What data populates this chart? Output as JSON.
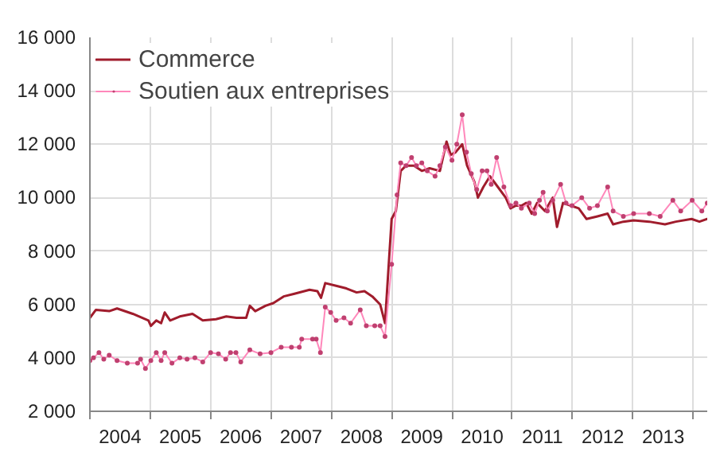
{
  "chart_data": {
    "type": "line",
    "xlim": [
      2004,
      2014.23
    ],
    "ylim": [
      2000,
      16000
    ],
    "xticks": [
      {
        "value": 2004,
        "label": null
      },
      {
        "value": 2005,
        "label": null
      },
      {
        "value": 2006,
        "label": null
      },
      {
        "value": 2007,
        "label": null
      },
      {
        "value": 2008,
        "label": null
      },
      {
        "value": 2009,
        "label": null
      },
      {
        "value": 2010,
        "label": null
      },
      {
        "value": 2011,
        "label": null
      },
      {
        "value": 2012,
        "label": null
      },
      {
        "value": 2013,
        "label": null
      },
      {
        "value": 2014,
        "label": null
      },
      {
        "value": 2004.5,
        "label": "2004"
      },
      {
        "value": 2005.5,
        "label": "2005"
      },
      {
        "value": 2006.5,
        "label": "2006"
      },
      {
        "value": 2007.5,
        "label": "2007"
      },
      {
        "value": 2008.5,
        "label": "2008"
      },
      {
        "value": 2009.5,
        "label": "2009"
      },
      {
        "value": 2010.5,
        "label": "2010"
      },
      {
        "value": 2011.5,
        "label": "2011"
      },
      {
        "value": 2012.5,
        "label": "2012"
      },
      {
        "value": 2013.5,
        "label": "2013"
      }
    ],
    "yticks": [
      {
        "value": 2000,
        "label": "2 000"
      },
      {
        "value": 4000,
        "label": "4 000"
      },
      {
        "value": 6000,
        "label": "6 000"
      },
      {
        "value": 8000,
        "label": "8 000"
      },
      {
        "value": 10000,
        "label": "10 000"
      },
      {
        "value": 12000,
        "label": "12 000"
      },
      {
        "value": 14000,
        "label": "14 000"
      },
      {
        "value": 16000,
        "label": "16 000"
      }
    ],
    "grid": true,
    "legend": "top left",
    "line_style": "solid",
    "series": [
      {
        "name": "Commerce",
        "color": "#a01c2c",
        "marker": "none",
        "x": [
          2004.0,
          2004.1,
          2004.32,
          2004.45,
          2004.71,
          2004.97,
          2005.01,
          2005.1,
          2005.18,
          2005.24,
          2005.33,
          2005.49,
          2005.7,
          2005.87,
          2006.09,
          2006.26,
          2006.43,
          2006.59,
          2006.65,
          2006.74,
          2006.91,
          2007.04,
          2007.21,
          2007.39,
          2007.64,
          2007.77,
          2007.83,
          2007.9,
          2008.08,
          2008.25,
          2008.42,
          2008.55,
          2008.68,
          2008.81,
          2008.89,
          2009.0,
          2009.07,
          2009.15,
          2009.24,
          2009.37,
          2009.5,
          2009.63,
          2009.8,
          2009.91,
          2009.98,
          2010.06,
          2010.17,
          2010.25,
          2010.37,
          2010.43,
          2010.52,
          2010.63,
          2010.76,
          2010.89,
          2010.97,
          2011.06,
          2011.15,
          2011.23,
          2011.32,
          2011.41,
          2011.54,
          2011.67,
          2011.74,
          2011.84,
          2011.97,
          2012.1,
          2012.23,
          2012.41,
          2012.58,
          2012.67,
          2012.84,
          2013.01,
          2013.27,
          2013.53,
          2013.71,
          2013.97,
          2014.1,
          2014.23
        ],
        "values": [
          5500,
          5800,
          5750,
          5850,
          5650,
          5400,
          5200,
          5400,
          5300,
          5700,
          5400,
          5550,
          5650,
          5400,
          5450,
          5550,
          5500,
          5500,
          5950,
          5750,
          5950,
          6050,
          6300,
          6400,
          6550,
          6500,
          6250,
          6800,
          6700,
          6600,
          6450,
          6500,
          6300,
          6000,
          5300,
          9200,
          9500,
          11000,
          11200,
          11200,
          11000,
          11100,
          11000,
          12100,
          11600,
          11700,
          12000,
          11200,
          10600,
          10000,
          10400,
          10800,
          10400,
          10000,
          9600,
          9700,
          9700,
          9800,
          9400,
          9800,
          9500,
          10000,
          8900,
          9800,
          9700,
          9600,
          9200,
          9300,
          9400,
          9000,
          9100,
          9150,
          9100,
          9000,
          9100,
          9200,
          9100,
          9200
        ]
      },
      {
        "name": "Soutien aux entreprises",
        "color": "#ff88bb",
        "marker": "circle",
        "x": [
          2004.0,
          2004.06,
          2004.15,
          2004.23,
          2004.32,
          2004.45,
          2004.62,
          2004.79,
          2004.84,
          2004.92,
          2005.01,
          2005.1,
          2005.18,
          2005.24,
          2005.36,
          2005.49,
          2005.61,
          2005.74,
          2005.87,
          2006.0,
          2006.13,
          2006.25,
          2006.33,
          2006.42,
          2006.5,
          2006.65,
          2006.82,
          2007.0,
          2007.17,
          2007.34,
          2007.47,
          2007.51,
          2007.69,
          2007.75,
          2007.82,
          2007.9,
          2007.99,
          2008.08,
          2008.21,
          2008.32,
          2008.48,
          2008.58,
          2008.72,
          2008.81,
          2008.89,
          2009.0,
          2009.09,
          2009.15,
          2009.24,
          2009.33,
          2009.41,
          2009.5,
          2009.59,
          2009.72,
          2009.8,
          2009.89,
          2010.0,
          2010.08,
          2010.17,
          2010.24,
          2010.32,
          2010.41,
          2010.5,
          2010.58,
          2010.65,
          2010.74,
          2010.86,
          2010.97,
          2011.06,
          2011.15,
          2011.28,
          2011.37,
          2011.45,
          2011.51,
          2011.58,
          2011.67,
          2011.8,
          2011.89,
          2011.99,
          2012.15,
          2012.28,
          2012.41,
          2012.58,
          2012.67,
          2012.84,
          2013.01,
          2013.27,
          2013.45,
          2013.66,
          2013.79,
          2013.98,
          2014.14,
          2014.23
        ],
        "values": [
          3900,
          4000,
          4200,
          3950,
          4100,
          3900,
          3800,
          3800,
          3950,
          3600,
          3900,
          4200,
          3900,
          4200,
          3800,
          4000,
          3950,
          4000,
          3850,
          4200,
          4150,
          3950,
          4200,
          4200,
          3850,
          4300,
          4150,
          4200,
          4400,
          4400,
          4400,
          4700,
          4700,
          4700,
          4200,
          5900,
          5700,
          5400,
          5500,
          5300,
          5800,
          5200,
          5200,
          5200,
          4800,
          7500,
          10100,
          11300,
          11200,
          11500,
          11200,
          11300,
          11000,
          10800,
          11200,
          11900,
          11400,
          12000,
          13100,
          11700,
          10900,
          10300,
          11000,
          11000,
          10500,
          11500,
          10400,
          9700,
          9800,
          9600,
          9800,
          9400,
          9900,
          10200,
          9500,
          9900,
          10500,
          9800,
          9700,
          10000,
          9600,
          9700,
          10400,
          9500,
          9300,
          9400,
          9400,
          9300,
          9900,
          9500,
          9900,
          9500,
          9800
        ]
      }
    ]
  }
}
